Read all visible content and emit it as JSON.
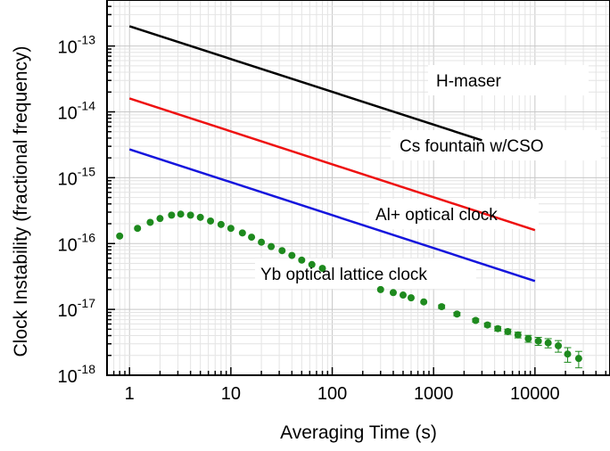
{
  "chart_data": {
    "type": "scatter",
    "title": "",
    "xlabel": "Averaging Time (s)",
    "ylabel": "Clock Instability (fractional frequency)",
    "xscale": "log",
    "yscale": "log",
    "xlim": [
      0.6,
      55000
    ],
    "ylim": [
      1e-18,
      5e-13
    ],
    "grid": true,
    "x_ticks": [
      {
        "value": 1,
        "label": "1"
      },
      {
        "value": 10,
        "label": "10"
      },
      {
        "value": 100,
        "label": "100"
      },
      {
        "value": 1000,
        "label": "1000"
      },
      {
        "value": 10000,
        "label": "10000"
      }
    ],
    "y_ticks": [
      {
        "value": 1e-18,
        "base": "10",
        "exp": "-18"
      },
      {
        "value": 1e-17,
        "base": "10",
        "exp": "-17"
      },
      {
        "value": 1e-16,
        "base": "10",
        "exp": "-16"
      },
      {
        "value": 1e-15,
        "base": "10",
        "exp": "-15"
      },
      {
        "value": 1e-14,
        "base": "10",
        "exp": "-14"
      },
      {
        "value": 1e-13,
        "base": "10",
        "exp": "-13"
      }
    ],
    "series": [
      {
        "name": "H-maser",
        "kind": "line",
        "color": "#000000",
        "x": [
          1,
          3000
        ],
        "y": [
          2e-13,
          3.7e-15
        ]
      },
      {
        "name": "Cs fountain w/CSO",
        "kind": "line",
        "color": "#ee1111",
        "x": [
          1,
          10000
        ],
        "y": [
          1.6e-14,
          1.6e-16
        ]
      },
      {
        "name": "Al+ optical clock",
        "kind": "line",
        "color": "#1515dd",
        "x": [
          1,
          10000
        ],
        "y": [
          2.7e-15,
          2.7e-17
        ]
      },
      {
        "name": "Yb optical lattice clock",
        "kind": "points",
        "color": "#1e8a1e",
        "x": [
          0.8,
          1.2,
          1.6,
          2.0,
          2.6,
          3.2,
          4.0,
          5.0,
          6.3,
          8.0,
          10,
          13,
          16,
          20,
          25,
          32,
          40,
          50,
          63,
          80,
          300,
          400,
          500,
          600,
          800,
          1200,
          1700,
          2600,
          3400,
          4300,
          5400,
          6800,
          8600,
          10800,
          13500,
          17000,
          21000,
          27000
        ],
        "y": [
          1.3e-16,
          1.7e-16,
          2.1e-16,
          2.4e-16,
          2.7e-16,
          2.8e-16,
          2.7e-16,
          2.5e-16,
          2.2e-16,
          1.95e-16,
          1.7e-16,
          1.45e-16,
          1.25e-16,
          1.05e-16,
          9e-17,
          7.8e-17,
          6.6e-17,
          5.6e-17,
          4.8e-17,
          4.2e-17,
          2e-17,
          1.8e-17,
          1.65e-17,
          1.5e-17,
          1.3e-17,
          1.1e-17,
          8.5e-18,
          6.8e-18,
          5.8e-18,
          5.1e-18,
          4.6e-18,
          4.1e-18,
          3.6e-18,
          3.3e-18,
          3.1e-18,
          2.8e-18,
          2.1e-18,
          1.8e-18
        ],
        "err": [
          0,
          0,
          0,
          0,
          0,
          0,
          0,
          0,
          0,
          0,
          0,
          0,
          0,
          0,
          0,
          0,
          0,
          0,
          0,
          0,
          0,
          0,
          0,
          0,
          0,
          0.06,
          0.06,
          0.06,
          0.07,
          0.08,
          0.09,
          0.1,
          0.12,
          0.14,
          0.16,
          0.2,
          0.25,
          0.28
        ]
      }
    ]
  }
}
